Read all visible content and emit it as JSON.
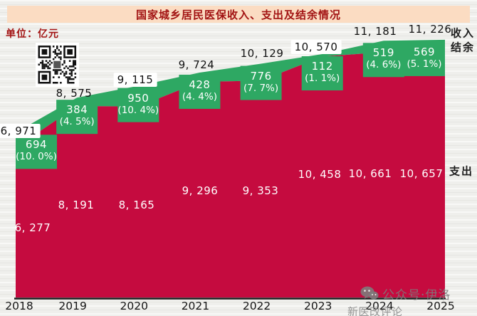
{
  "header": {
    "title": "国家城乡居民医保收入、支出及结余情况",
    "unit_label": "单位：亿元"
  },
  "side_labels": {
    "income": "收入",
    "balance": "结余",
    "expenditure": "支出"
  },
  "watermark": {
    "line1": "公众号·伊洛",
    "line2": "新医改评论www.xygpl.com"
  },
  "colors": {
    "expenditure_area": "#c50b3f",
    "balance_area": "#2ea863",
    "banner_bg": "#fbdcc2",
    "banner_text": "#a21313",
    "axis_line": "#1b1b1b"
  },
  "chart_data": {
    "type": "area",
    "title": "国家城乡居民医保收入、支出及结余情况",
    "unit": "亿元",
    "categories": [
      "2018",
      "2019",
      "2020",
      "2021",
      "2022",
      "2023",
      "2024",
      "2025"
    ],
    "series": [
      {
        "name": "收入",
        "values": [
          6971,
          8575,
          9115,
          9724,
          10129,
          10570,
          11181,
          11226
        ],
        "labels": [
          "6, 971",
          "8, 575",
          "9, 115",
          "9, 724",
          "10, 129",
          "10, 570",
          "11, 181",
          "11, 226"
        ]
      },
      {
        "name": "支出",
        "values": [
          6277,
          8191,
          8165,
          9296,
          9353,
          10458,
          10661,
          10657
        ],
        "labels": [
          "6, 277",
          "8, 191",
          "8, 165",
          "9, 296",
          "9, 353",
          "10, 458",
          "10, 661",
          "10, 657"
        ]
      },
      {
        "name": "结余",
        "values": [
          694,
          384,
          950,
          428,
          776,
          112,
          519,
          569
        ],
        "labels": [
          "694",
          "384",
          "950",
          "428",
          "776",
          "112",
          "519",
          "569"
        ],
        "pct_labels": [
          "(10. 0%)",
          "(4. 5%)",
          "(10. 4%)",
          "(4. 4%)",
          "(7. 7%)",
          "(1. 1%)",
          "(4. 6%)",
          "(5. 1%)"
        ]
      }
    ],
    "ylim": [
      0,
      11500
    ],
    "grid": false,
    "legend_position": "right-edge"
  }
}
